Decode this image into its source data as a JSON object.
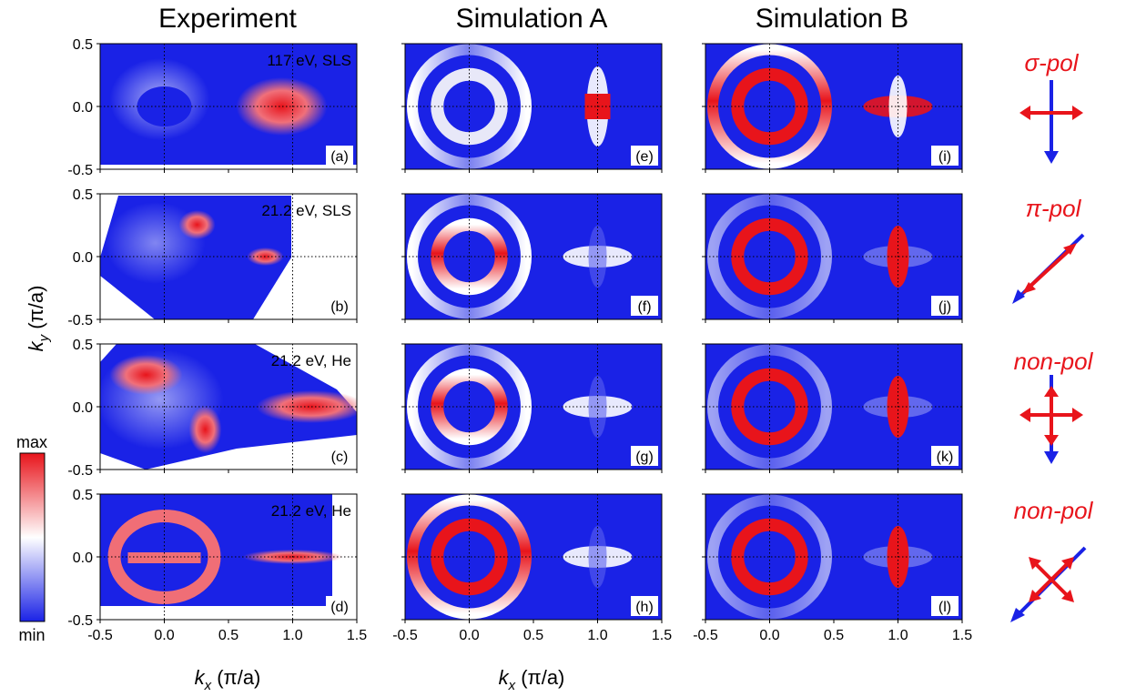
{
  "columns": [
    "Experiment",
    "Simulation A",
    "Simulation B"
  ],
  "axes": {
    "x_ticks": [
      "-0.5",
      "0.0",
      "0.5",
      "1.0",
      "1.5"
    ],
    "y_ticks": [
      "0.5",
      "0.0",
      "-0.5"
    ],
    "x_label_var": "k",
    "x_label_sub": "x",
    "x_label_unit": " (π/a)",
    "y_label_var": "k",
    "y_label_sub": "y",
    "y_label_unit": " (π/a)"
  },
  "colorbar": {
    "max": "max",
    "min": "min",
    "colors": [
      "#e8141b",
      "#ffffff",
      "#1a22e6"
    ]
  },
  "experiment_info": [
    "117 eV, SLS",
    "21.2 eV, SLS",
    "21.2 eV, He",
    "21.2 eV, He"
  ],
  "panel_tags": [
    [
      "(a)",
      "(e)",
      "(i)"
    ],
    [
      "(b)",
      "(f)",
      "(j)"
    ],
    [
      "(c)",
      "(g)",
      "(k)"
    ],
    [
      "(d)",
      "(h)",
      "(l)"
    ]
  ],
  "polarizations": [
    "σ-pol",
    "π-pol",
    "non-pol",
    "non-pol"
  ],
  "colors": {
    "map_blue": "#1a22e6",
    "map_red": "#e8141b",
    "pol_red": "#e8141b",
    "arrow_blue": "#1a22e6"
  }
}
